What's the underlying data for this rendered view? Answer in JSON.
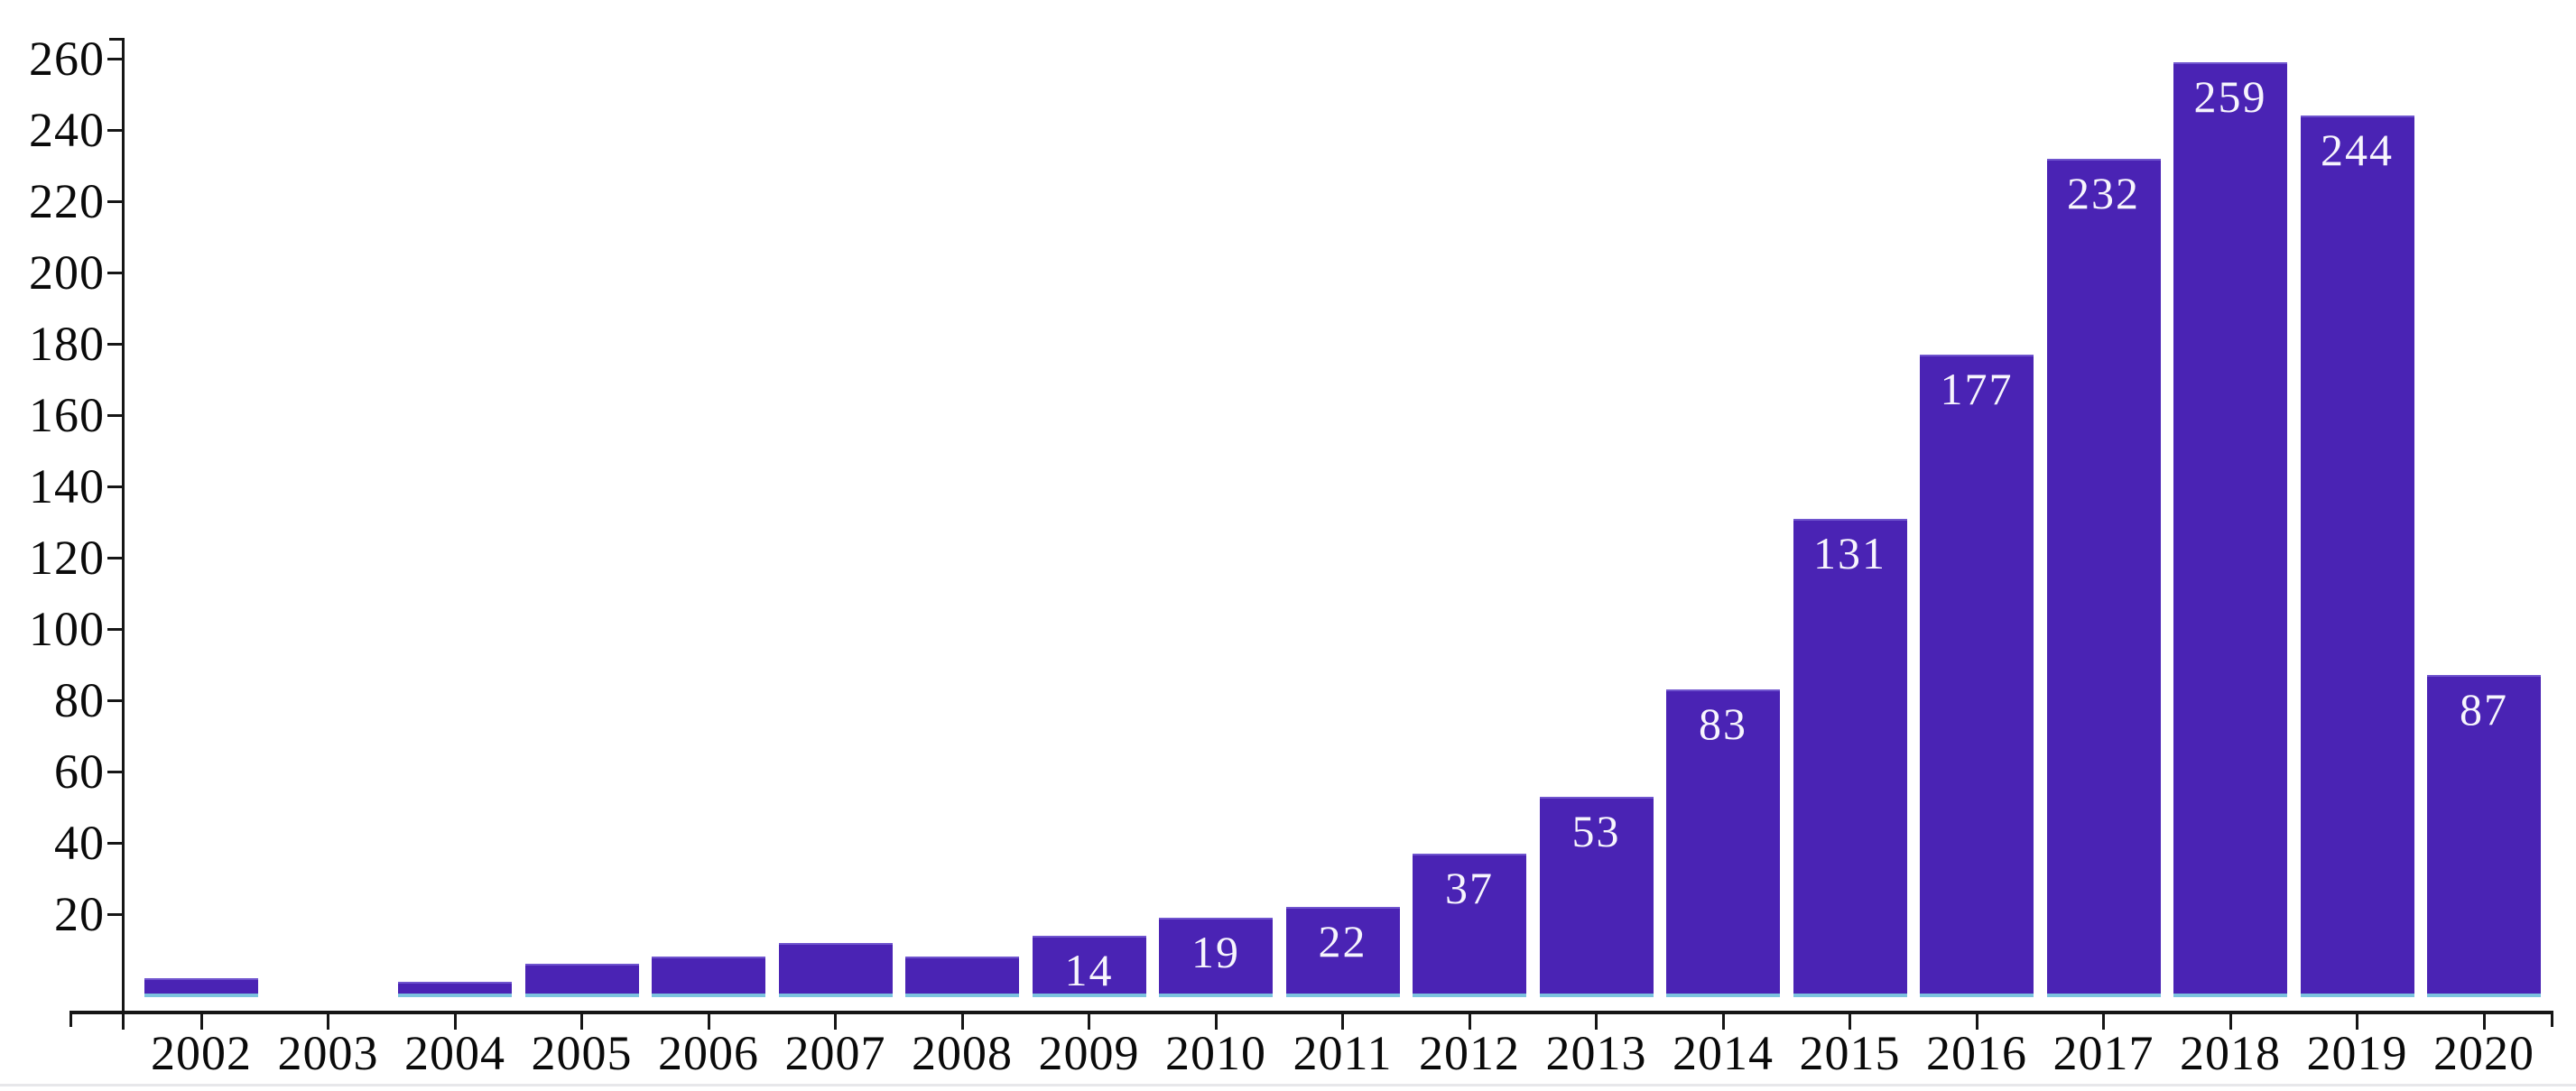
{
  "chart_data": {
    "type": "bar",
    "title": "",
    "xlabel": "",
    "ylabel": "",
    "categories": [
      "2002",
      "2003",
      "2004",
      "2005",
      "2006",
      "2007",
      "2008",
      "2009",
      "2010",
      "2011",
      "2012",
      "2013",
      "2014",
      "2015",
      "2016",
      "2017",
      "2018",
      "2019",
      "2020"
    ],
    "values": [
      2,
      0,
      1,
      6,
      8,
      12,
      8,
      14,
      19,
      22,
      37,
      53,
      83,
      131,
      177,
      232,
      259,
      244,
      87
    ],
    "bar_labels": [
      "",
      "",
      "",
      "",
      "",
      "",
      "",
      "14",
      "19",
      "22",
      "37",
      "53",
      "83",
      "131",
      "177",
      "232",
      "259",
      "244",
      "87"
    ],
    "yticks": [
      20,
      40,
      60,
      80,
      100,
      120,
      140,
      160,
      180,
      200,
      220,
      240,
      260
    ],
    "ylim": [
      0,
      266
    ],
    "grid": "off",
    "legend": "none",
    "colors": {
      "bar_fill": "#4a23b4",
      "bar_top_edge": "#6f54ce",
      "bar_bottom_edge": "#7cc3de",
      "bar_label_text": "#f7f5fd",
      "axis": "#161616",
      "tick_label_text": "#0a0a0a",
      "background": "#ffffff"
    }
  }
}
